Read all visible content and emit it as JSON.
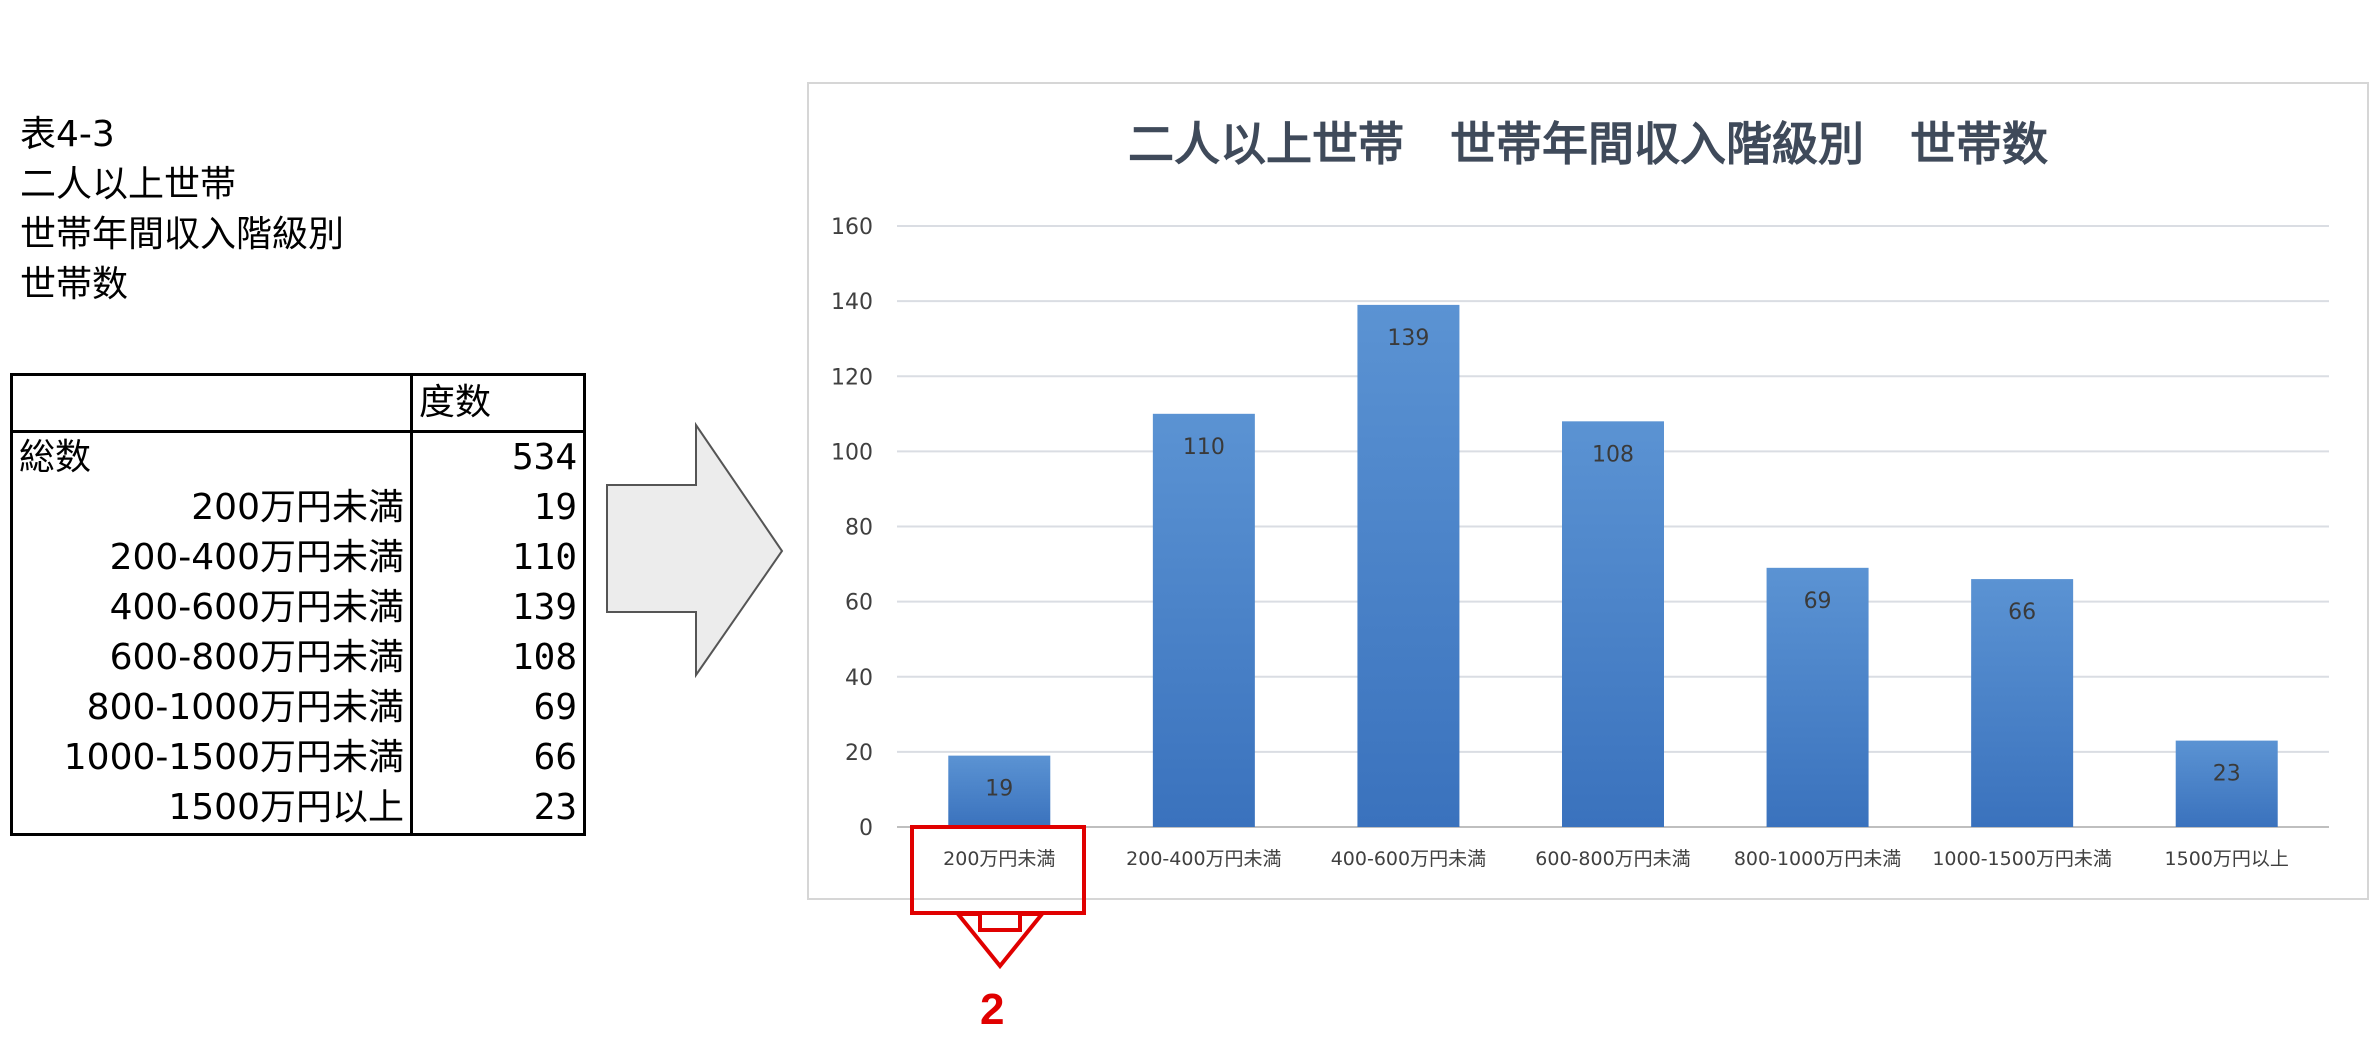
{
  "caption": {
    "lines": [
      "表4-3",
      "二人以上世帯",
      "世帯年間収入階級別",
      "世帯数"
    ]
  },
  "table": {
    "header": [
      "",
      "度数"
    ],
    "total": {
      "label": "総数",
      "value": 534
    },
    "rows": [
      {
        "label": "200万円未満",
        "value": 19
      },
      {
        "label": "200-400万円未満",
        "value": 110
      },
      {
        "label": "400-600万円未満",
        "value": 139
      },
      {
        "label": "600-800万円未満",
        "value": 108
      },
      {
        "label": "800-1000万円未満",
        "value": 69
      },
      {
        "label": "1000-1500万円未満",
        "value": 66
      },
      {
        "label": "1500万円以上",
        "value": 23
      }
    ]
  },
  "chart_data": {
    "type": "bar",
    "title": "二人以上世帯　世帯年間収入階級別　世帯数",
    "categories": [
      "200万円未満",
      "200-400万円未満",
      "400-600万円未満",
      "600-800万円未満",
      "800-1000万円未満",
      "1000-1500万円未満",
      "1500万円以上"
    ],
    "values": [
      19,
      110,
      139,
      108,
      69,
      66,
      23
    ],
    "yticks": [
      0,
      20,
      40,
      60,
      80,
      100,
      120,
      140,
      160
    ],
    "ylim": [
      0,
      160
    ],
    "xlabel": "",
    "ylabel": "",
    "grid": true,
    "legend": "none",
    "bar_color_top": "#5b93d3",
    "bar_color_bottom": "#3a72bd",
    "title_color": "#3f4a5a",
    "label_color": "#404040"
  },
  "annotation": {
    "label": "2",
    "color": "#e00000",
    "target_category": "200万円未満"
  },
  "arrow": {
    "fill": "#ececec",
    "stroke": "#555555"
  }
}
